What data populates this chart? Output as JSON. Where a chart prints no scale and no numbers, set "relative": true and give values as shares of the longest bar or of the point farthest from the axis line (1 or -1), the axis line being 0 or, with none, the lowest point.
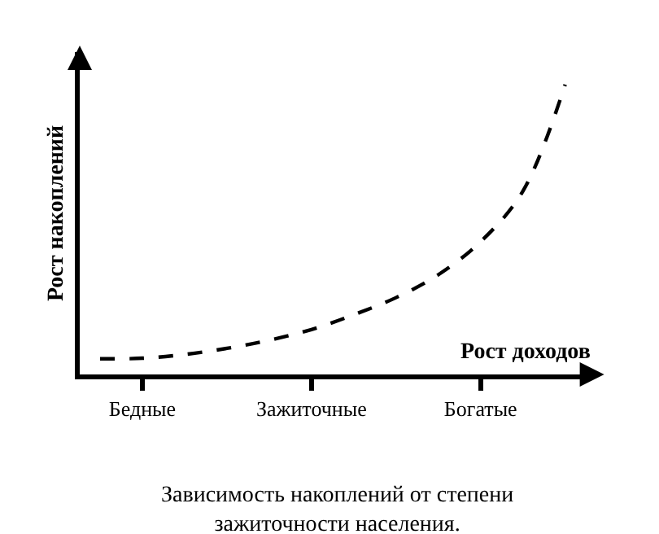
{
  "chart_data": {
    "type": "line",
    "relative": true,
    "xlabel": "Рост доходов",
    "ylabel": "Рост накоплений",
    "annotations": [
      "Зависимость накоплений от степени зажиточности населения."
    ],
    "categories": [
      null,
      "Бедные",
      null,
      null,
      null,
      "Зажиточные",
      null,
      null,
      null,
      "Богатые",
      null,
      null
    ],
    "series": [
      {
        "color": "#000000",
        "line_style": "dashed",
        "values": [
          0.054,
          0.056,
          0.069,
          0.09,
          0.118,
          0.155,
          0.206,
          0.265,
          0.344,
          0.458,
          0.632,
          1.0
        ]
      }
    ],
    "legend": false,
    "marker": "none"
  }
}
